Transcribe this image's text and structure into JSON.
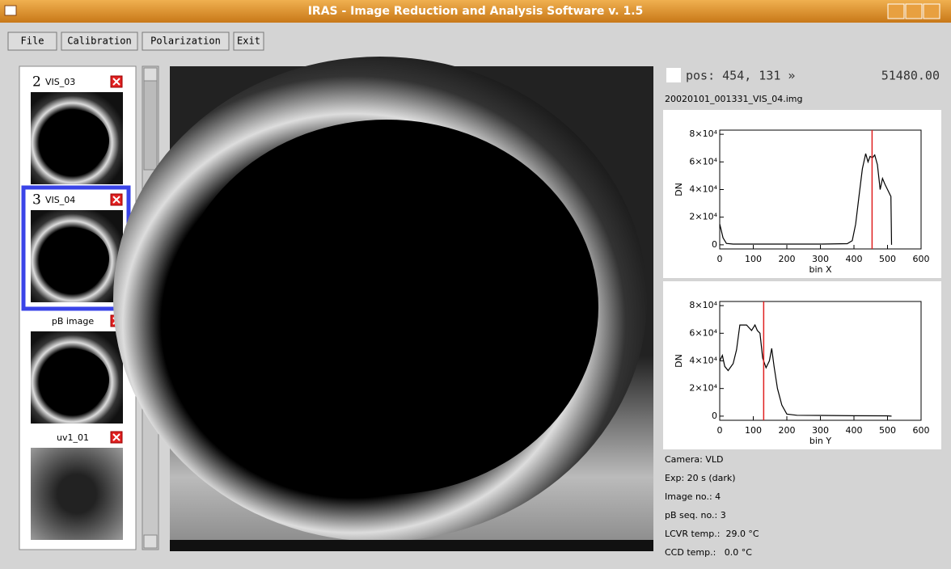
{
  "window": {
    "title": "IRAS - Image Reduction and Analysis Software v. 1.5"
  },
  "menu": [
    "File",
    "Calibration",
    "Polarization",
    "Exit"
  ],
  "thumbnails": [
    {
      "number": "2",
      "name": "VIS_03"
    },
    {
      "number": "3",
      "name": "VIS_04"
    },
    {
      "number": null,
      "name": "pB image"
    },
    {
      "number": null,
      "name": "uv1_01"
    }
  ],
  "status": {
    "position": "pos: 454, 131 »",
    "value": "51480.00",
    "filename": "20020101_001331_VIS_04.img"
  },
  "plots": [
    {
      "type": "line",
      "x_label": "bin X",
      "y_label": "DN",
      "color": "#000000",
      "cursor_color": "#e02020",
      "cursor": 454,
      "x": [
        0,
        5,
        10,
        20,
        40,
        100,
        200,
        300,
        380,
        395,
        405,
        415,
        425,
        435,
        442,
        448,
        455,
        462,
        470,
        478,
        485,
        492,
        500,
        508,
        510,
        512
      ],
      "values": [
        15000,
        10000,
        5000,
        1000,
        500,
        500,
        500,
        500,
        800,
        3000,
        15000,
        35000,
        55000,
        66000,
        60000,
        64000,
        63000,
        65000,
        58000,
        40000,
        48000,
        44000,
        40000,
        36000,
        35000,
        0
      ],
      "xlim": [
        0,
        600
      ],
      "ylim": [
        -3000,
        83000
      ],
      "xticks": [
        0,
        100,
        200,
        300,
        400,
        500,
        600
      ],
      "yticks": [
        0,
        {
          "value": 20000,
          "label": "2×10⁴"
        },
        {
          "value": 40000,
          "label": "4×10⁴"
        },
        {
          "value": 60000,
          "label": "6×10⁴"
        },
        {
          "value": 80000,
          "label": "8×10⁴"
        }
      ]
    },
    {
      "type": "line",
      "x_label": "bin Y",
      "y_label": "DN",
      "color": "#000000",
      "cursor_color": "#e02020",
      "cursor": 131,
      "x": [
        0,
        8,
        15,
        25,
        40,
        50,
        60,
        80,
        95,
        105,
        112,
        120,
        128,
        138,
        148,
        155,
        162,
        172,
        185,
        200,
        230,
        300,
        400,
        500,
        512
      ],
      "values": [
        40000,
        44000,
        36000,
        33000,
        38000,
        48000,
        66000,
        66000,
        62000,
        66000,
        62000,
        60000,
        42000,
        35000,
        40000,
        49000,
        36000,
        20000,
        8000,
        1500,
        600,
        500,
        300,
        200,
        0
      ],
      "xlim": [
        0,
        600
      ],
      "ylim": [
        -3000,
        83000
      ],
      "xticks": [
        0,
        100,
        200,
        300,
        400,
        500,
        600
      ],
      "yticks": [
        0,
        {
          "value": 20000,
          "label": "2×10⁴"
        },
        {
          "value": 40000,
          "label": "4×10⁴"
        },
        {
          "value": 60000,
          "label": "6×10⁴"
        },
        {
          "value": 80000,
          "label": "8×10⁴"
        }
      ]
    }
  ],
  "info": [
    "Camera: VLD",
    "Exp: 20 s (dark)",
    "Image no.: 4",
    "pB seq. no.: 3",
    "LCVR temp.:  29.0 °C",
    "CCD temp.:   0.0 °C"
  ]
}
